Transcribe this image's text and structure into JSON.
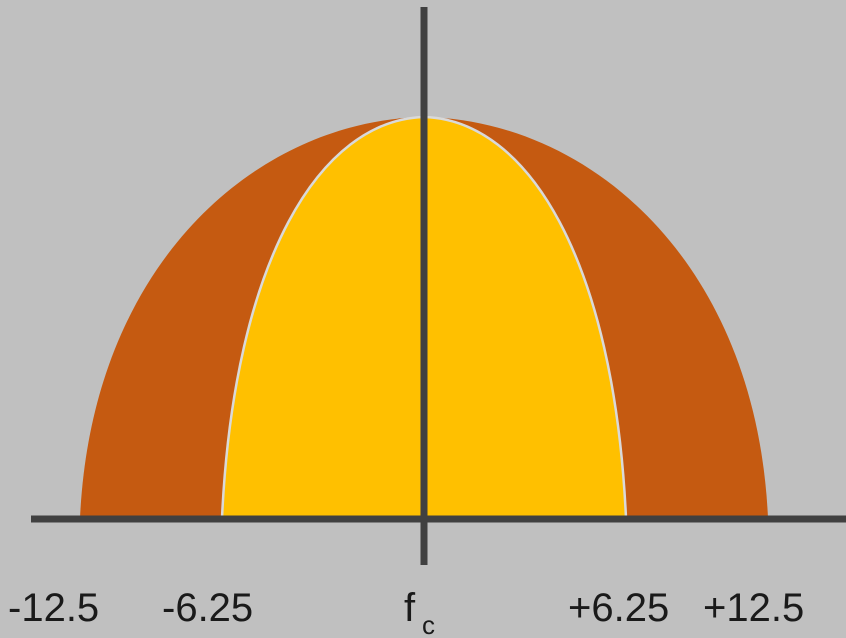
{
  "diagram": {
    "colors": {
      "background": "#c0c0c0",
      "outer_band": "#c55a11",
      "inner_band": "#ffc000",
      "axis": "#404040",
      "divider": "#d9d9d9"
    },
    "labels": {
      "minus_12_5": "-12.5",
      "minus_6_25": "-6.25",
      "center_main": "f",
      "center_sub": "c",
      "plus_6_25": "+6.25",
      "plus_12_5": "+12.5"
    }
  }
}
